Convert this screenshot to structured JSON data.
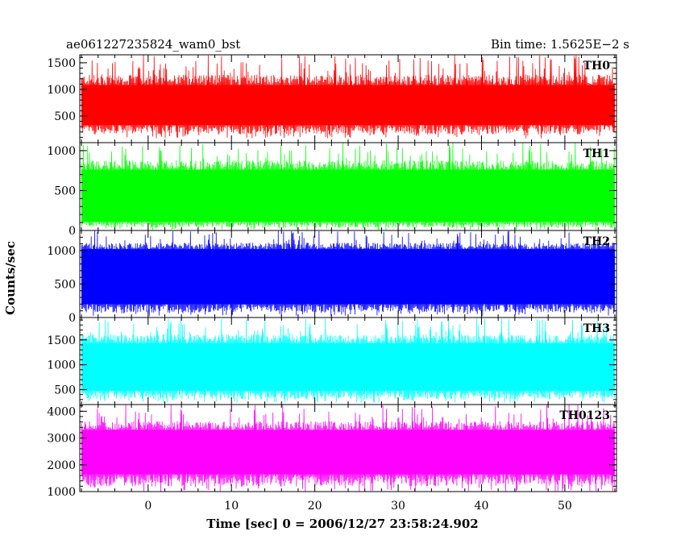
{
  "chart_data": {
    "type": "line",
    "title": "ae061227235824_wam0_bst",
    "subtitle": "Bin time: 1.5625E−2 s",
    "xlabel": "Time [sec] 0 = 2006/12/27 23:58:24.902",
    "ylabel": "Counts/sec",
    "xlim": [
      -8.2,
      56.2
    ],
    "x_ticks": [
      0,
      10,
      20,
      30,
      40,
      50
    ],
    "x_tick_labels": [
      "0",
      "10",
      "20",
      "30",
      "40",
      "50"
    ],
    "x_minor_step": 2,
    "data_x_range": [
      -8.0,
      56.0
    ],
    "grid": false,
    "legend": "none",
    "panels": [
      {
        "name": "TH0",
        "color": "#ff0000",
        "ylim": [
          0,
          1650
        ],
        "y_ticks": [
          500,
          1000,
          1500
        ],
        "y_tick_labels": [
          "500",
          "1000",
          "1500"
        ],
        "y_minor_step": 100,
        "envelope": {
          "mean": 720,
          "low_min": 80,
          "low_max": 330,
          "high_min": 1080,
          "high_max": 1650
        }
      },
      {
        "name": "TH1",
        "color": "#00ff00",
        "ylim": [
          0,
          1100
        ],
        "y_ticks": [
          0,
          500,
          1000
        ],
        "y_tick_labels": [
          "0",
          "500",
          "1000"
        ],
        "y_minor_step": 100,
        "envelope": {
          "mean": 430,
          "low_min": 5,
          "low_max": 110,
          "high_min": 760,
          "high_max": 1100
        }
      },
      {
        "name": "TH2",
        "color": "#0000ff",
        "ylim": [
          0,
          1300
        ],
        "y_ticks": [
          0,
          500,
          1000
        ],
        "y_tick_labels": [
          "0",
          "500",
          "1000"
        ],
        "y_minor_step": 100,
        "envelope": {
          "mean": 620,
          "low_min": 20,
          "low_max": 200,
          "high_min": 1020,
          "high_max": 1300
        }
      },
      {
        "name": "TH3",
        "color": "#00ffff",
        "ylim": [
          200,
          1950
        ],
        "y_ticks": [
          500,
          1000,
          1500
        ],
        "y_tick_labels": [
          "500",
          "1000",
          "1500"
        ],
        "y_minor_step": 100,
        "envelope": {
          "mean": 1000,
          "low_min": 230,
          "low_max": 480,
          "high_min": 1430,
          "high_max": 1950
        }
      },
      {
        "name": "TH0123",
        "color": "#ff00ff",
        "ylim": [
          1000,
          4250
        ],
        "y_ticks": [
          1000,
          2000,
          3000,
          4000
        ],
        "y_tick_labels": [
          "1000",
          "2000",
          "3000",
          "4000"
        ],
        "y_minor_step": 200,
        "envelope": {
          "mean": 2450,
          "low_min": 1000,
          "low_max": 1650,
          "high_min": 3300,
          "high_max": 4250
        }
      }
    ]
  }
}
